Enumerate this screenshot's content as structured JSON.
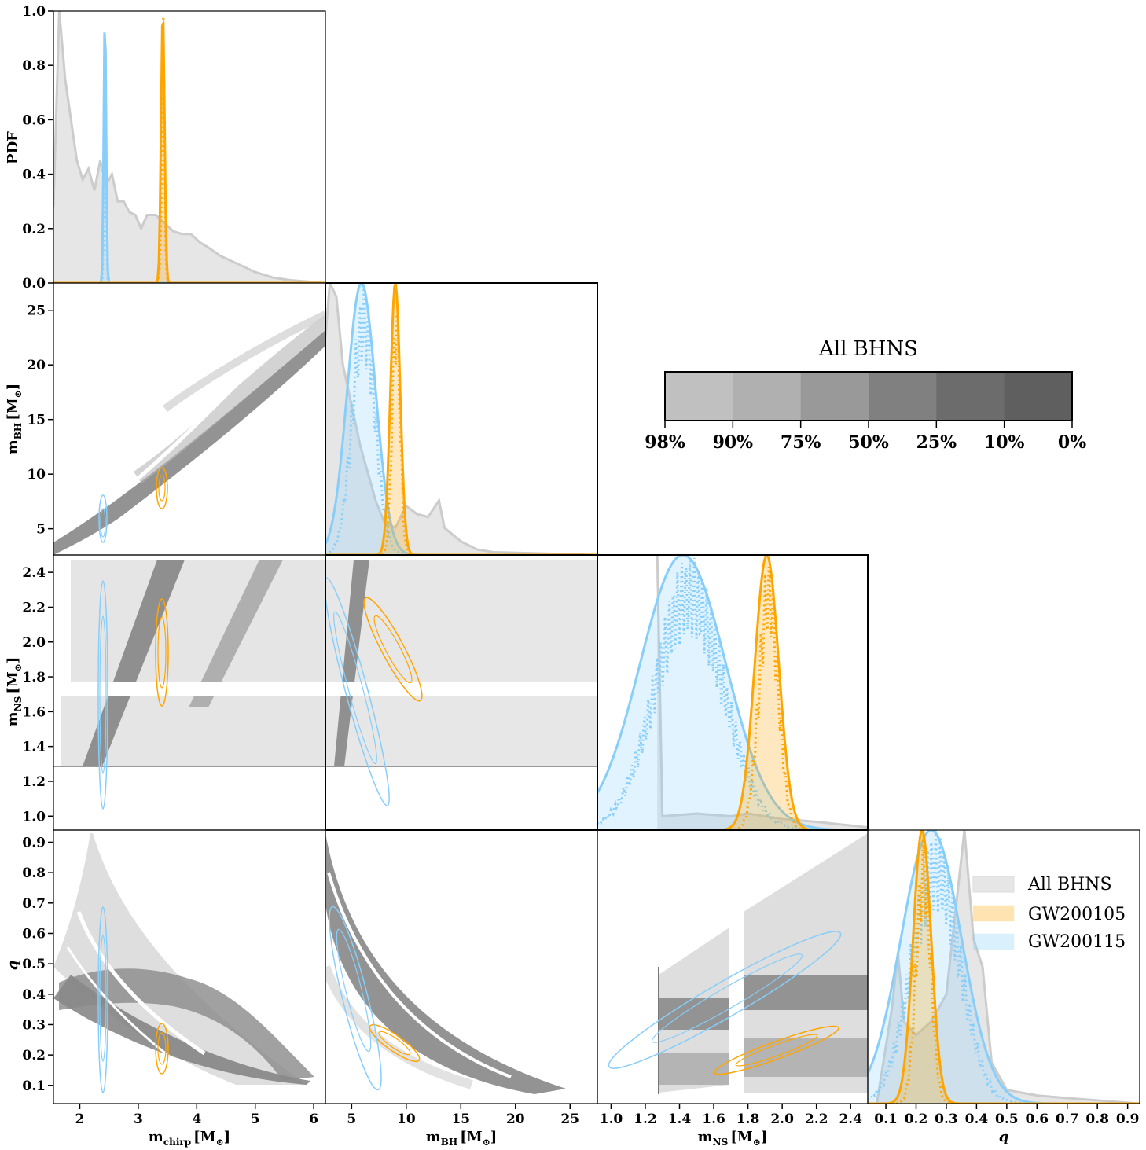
{
  "colors": {
    "all": "#cccccc",
    "all_fill": "#e6e6e6",
    "gw200105": "#ffa500",
    "gw200115": "#87cefa",
    "scatter": "#808080"
  },
  "labels": {
    "pdf": "PDF",
    "mchirp": "m",
    "mchirp_sub": "chirp",
    "mbh": "m",
    "mbh_sub": "BH",
    "mns": "m",
    "mns_sub": "NS",
    "unit": "[M",
    "unit_sub": "⊙",
    "unit_close": "]",
    "q": "q"
  },
  "colorbar": {
    "title": "All BHNS",
    "ticks": [
      "98%",
      "90%",
      "75%",
      "50%",
      "25%",
      "10%",
      "0%"
    ],
    "shades": [
      "#c0c0c0",
      "#b0b0b0",
      "#999999",
      "#808080",
      "#6c6c6c",
      "#5f5f5f"
    ]
  },
  "legend": [
    "All BHNS",
    "GW200105",
    "GW200115"
  ],
  "chart_data": {
    "type": "corner",
    "variables": [
      "m_chirp",
      "m_BH",
      "m_NS",
      "q"
    ],
    "ranges": {
      "m_chirp": [
        1.55,
        6.2
      ],
      "m_BH": [
        2.6,
        27.5
      ],
      "m_NS": [
        0.92,
        2.5
      ],
      "q": [
        0.04,
        0.94
      ]
    },
    "ticks": {
      "m_chirp": [
        2,
        3,
        4,
        5,
        6
      ],
      "m_BH": [
        5,
        10,
        15,
        20,
        25
      ],
      "m_NS": [
        1.0,
        1.2,
        1.4,
        1.6,
        1.8,
        2.0,
        2.2,
        2.4
      ],
      "q": [
        0.1,
        0.2,
        0.3,
        0.4,
        0.5,
        0.6,
        0.7,
        0.8,
        0.9
      ],
      "pdf": [
        0.0,
        0.2,
        0.4,
        0.6,
        0.8,
        1.0
      ]
    },
    "pdf_curves": {
      "m_chirp": {
        "all": [
          [
            1.55,
            0.28
          ],
          [
            1.65,
            1.0
          ],
          [
            1.75,
            0.75
          ],
          [
            1.85,
            0.6
          ],
          [
            1.95,
            0.45
          ],
          [
            2.05,
            0.38
          ],
          [
            2.15,
            0.42
          ],
          [
            2.25,
            0.34
          ],
          [
            2.35,
            0.45
          ],
          [
            2.45,
            0.36
          ],
          [
            2.55,
            0.4
          ],
          [
            2.65,
            0.3
          ],
          [
            2.75,
            0.3
          ],
          [
            2.85,
            0.26
          ],
          [
            2.95,
            0.25
          ],
          [
            3.05,
            0.2
          ],
          [
            3.15,
            0.25
          ],
          [
            3.3,
            0.25
          ],
          [
            3.45,
            0.22
          ],
          [
            3.6,
            0.19
          ],
          [
            3.75,
            0.18
          ],
          [
            3.9,
            0.18
          ],
          [
            4.05,
            0.15
          ],
          [
            4.2,
            0.13
          ],
          [
            4.4,
            0.1
          ],
          [
            4.6,
            0.08
          ],
          [
            4.8,
            0.06
          ],
          [
            5.0,
            0.04
          ],
          [
            5.3,
            0.02
          ],
          [
            5.6,
            0.01
          ],
          [
            6.2,
            0.0
          ]
        ],
        "gw200105": {
          "mean": 3.42,
          "sigma": 0.03
        },
        "gw200115": {
          "mean": 2.43,
          "sigma": 0.02
        }
      },
      "m_BH": {
        "all": [
          [
            2.6,
            0.8
          ],
          [
            3.0,
            1.0
          ],
          [
            3.6,
            0.95
          ],
          [
            4.2,
            0.7
          ],
          [
            5.0,
            0.55
          ],
          [
            5.8,
            0.4
          ],
          [
            6.5,
            0.3
          ],
          [
            7.2,
            0.2
          ],
          [
            8.0,
            0.12
          ],
          [
            9.0,
            0.1
          ],
          [
            10.0,
            0.18
          ],
          [
            11.0,
            0.15
          ],
          [
            12.0,
            0.14
          ],
          [
            13.0,
            0.2
          ],
          [
            13.5,
            0.1
          ],
          [
            15.0,
            0.05
          ],
          [
            16.5,
            0.02
          ],
          [
            18.0,
            0.01
          ],
          [
            27.5,
            0.0
          ]
        ],
        "gw200105": {
          "mean": 9.0,
          "sigma": 0.45
        },
        "gw200115": {
          "mean": 5.9,
          "sigma": 1.3
        }
      },
      "m_NS": {
        "all": [
          [
            1.27,
            1.0
          ],
          [
            1.3,
            0.05
          ],
          [
            1.5,
            0.06
          ],
          [
            1.7,
            0.05
          ],
          [
            1.8,
            0.06
          ],
          [
            2.0,
            0.04
          ],
          [
            2.2,
            0.03
          ],
          [
            2.5,
            0.01
          ]
        ],
        "gw200105": {
          "mean": 1.91,
          "sigma": 0.07
        },
        "gw200115": {
          "mean": 1.42,
          "sigma": 0.25
        }
      },
      "q": {
        "all": [
          [
            0.07,
            0.0
          ],
          [
            0.12,
            0.35
          ],
          [
            0.14,
            0.55
          ],
          [
            0.16,
            0.3
          ],
          [
            0.2,
            0.25
          ],
          [
            0.25,
            0.3
          ],
          [
            0.3,
            0.4
          ],
          [
            0.33,
            0.7
          ],
          [
            0.36,
            1.0
          ],
          [
            0.39,
            0.6
          ],
          [
            0.42,
            0.5
          ],
          [
            0.45,
            0.15
          ],
          [
            0.5,
            0.05
          ],
          [
            0.6,
            0.03
          ],
          [
            0.7,
            0.02
          ],
          [
            0.94,
            0.0
          ]
        ],
        "gw200105": {
          "mean": 0.22,
          "sigma": 0.03
        },
        "gw200115": {
          "mean": 0.25,
          "sigma": 0.1
        }
      }
    },
    "credible_ellipses": {
      "gw200105": {
        "m_chirp": 3.42,
        "m_BH": 8.8,
        "m_NS": 1.92,
        "q": 0.22
      },
      "gw200115": {
        "m_chirp": 2.43,
        "m_BH": 5.9,
        "m_NS": 1.55,
        "q": 0.3
      }
    }
  }
}
